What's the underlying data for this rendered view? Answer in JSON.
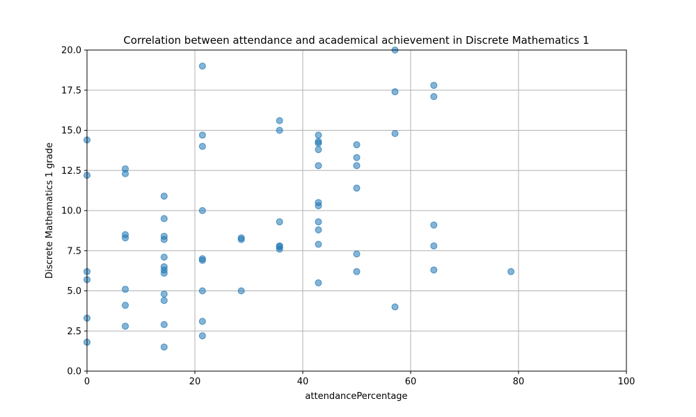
{
  "chart_data": {
    "type": "scatter",
    "title": "Correlation between attendance and academical achievement in Discrete Mathematics 1",
    "xlabel": "attendancePercentage",
    "ylabel": "Discrete Mathematics 1 grade",
    "xlim": [
      0,
      100
    ],
    "ylim": [
      0,
      20
    ],
    "x_ticks": [
      "0",
      "20",
      "40",
      "60",
      "80",
      "100"
    ],
    "y_ticks": [
      "0.0",
      "2.5",
      "5.0",
      "7.5",
      "10.0",
      "12.5",
      "15.0",
      "17.5",
      "20.0"
    ],
    "grid": true,
    "point_color": "#1f77b4",
    "points": [
      {
        "x": 0,
        "y": 14.4
      },
      {
        "x": 0,
        "y": 12.2
      },
      {
        "x": 0,
        "y": 6.2
      },
      {
        "x": 0,
        "y": 5.7
      },
      {
        "x": 0,
        "y": 3.3
      },
      {
        "x": 0,
        "y": 1.8
      },
      {
        "x": 7.1,
        "y": 12.6
      },
      {
        "x": 7.1,
        "y": 12.3
      },
      {
        "x": 7.1,
        "y": 8.5
      },
      {
        "x": 7.1,
        "y": 8.3
      },
      {
        "x": 7.1,
        "y": 5.1
      },
      {
        "x": 7.1,
        "y": 4.1
      },
      {
        "x": 7.1,
        "y": 2.8
      },
      {
        "x": 14.3,
        "y": 10.9
      },
      {
        "x": 14.3,
        "y": 9.5
      },
      {
        "x": 14.3,
        "y": 8.4
      },
      {
        "x": 14.3,
        "y": 8.2
      },
      {
        "x": 14.3,
        "y": 7.1
      },
      {
        "x": 14.3,
        "y": 6.5
      },
      {
        "x": 14.3,
        "y": 6.3
      },
      {
        "x": 14.3,
        "y": 6.1
      },
      {
        "x": 14.3,
        "y": 4.8
      },
      {
        "x": 14.3,
        "y": 4.4
      },
      {
        "x": 14.3,
        "y": 2.9
      },
      {
        "x": 14.3,
        "y": 1.5
      },
      {
        "x": 21.4,
        "y": 19.0
      },
      {
        "x": 21.4,
        "y": 14.7
      },
      {
        "x": 21.4,
        "y": 14.0
      },
      {
        "x": 21.4,
        "y": 10.0
      },
      {
        "x": 21.4,
        "y": 7.0
      },
      {
        "x": 21.4,
        "y": 6.9
      },
      {
        "x": 21.4,
        "y": 5.0
      },
      {
        "x": 21.4,
        "y": 3.1
      },
      {
        "x": 21.4,
        "y": 2.2
      },
      {
        "x": 28.6,
        "y": 8.3
      },
      {
        "x": 28.6,
        "y": 8.2
      },
      {
        "x": 28.6,
        "y": 5.0
      },
      {
        "x": 35.7,
        "y": 15.6
      },
      {
        "x": 35.7,
        "y": 15.0
      },
      {
        "x": 35.7,
        "y": 9.3
      },
      {
        "x": 35.7,
        "y": 7.8
      },
      {
        "x": 35.7,
        "y": 7.75
      },
      {
        "x": 35.7,
        "y": 7.6
      },
      {
        "x": 42.9,
        "y": 14.7
      },
      {
        "x": 42.9,
        "y": 14.3
      },
      {
        "x": 42.9,
        "y": 14.2
      },
      {
        "x": 42.9,
        "y": 13.8
      },
      {
        "x": 42.9,
        "y": 12.8
      },
      {
        "x": 42.9,
        "y": 10.5
      },
      {
        "x": 42.9,
        "y": 10.3
      },
      {
        "x": 42.9,
        "y": 9.3
      },
      {
        "x": 42.9,
        "y": 8.8
      },
      {
        "x": 42.9,
        "y": 7.9
      },
      {
        "x": 42.9,
        "y": 5.5
      },
      {
        "x": 50,
        "y": 14.1
      },
      {
        "x": 50,
        "y": 13.3
      },
      {
        "x": 50,
        "y": 12.8
      },
      {
        "x": 50,
        "y": 11.4
      },
      {
        "x": 50,
        "y": 7.3
      },
      {
        "x": 50,
        "y": 6.2
      },
      {
        "x": 57.1,
        "y": 20.0
      },
      {
        "x": 57.1,
        "y": 17.4
      },
      {
        "x": 57.1,
        "y": 14.8
      },
      {
        "x": 57.1,
        "y": 4.0
      },
      {
        "x": 64.3,
        "y": 17.8
      },
      {
        "x": 64.3,
        "y": 17.1
      },
      {
        "x": 64.3,
        "y": 9.1
      },
      {
        "x": 64.3,
        "y": 7.8
      },
      {
        "x": 64.3,
        "y": 6.3
      },
      {
        "x": 78.6,
        "y": 6.2
      }
    ]
  }
}
